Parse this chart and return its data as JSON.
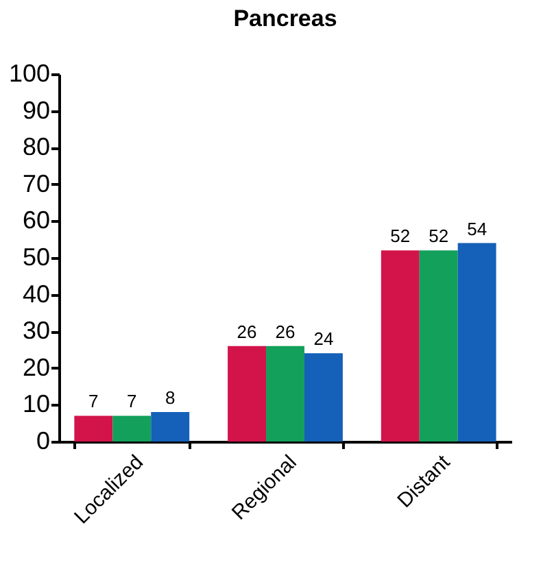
{
  "chart_data": {
    "type": "bar",
    "title": "Pancreas",
    "categories": [
      "Localized",
      "Regional",
      "Distant"
    ],
    "series": [
      {
        "color": "#d2144a",
        "values": [
          7,
          26,
          52
        ]
      },
      {
        "color": "#12a05a",
        "values": [
          7,
          26,
          52
        ]
      },
      {
        "color": "#1560b8",
        "values": [
          8,
          24,
          54
        ]
      }
    ],
    "ylim": [
      0,
      100
    ],
    "yticks": [
      0,
      10,
      20,
      30,
      40,
      50,
      60,
      70,
      80,
      90,
      100
    ],
    "grid": false,
    "legend": false,
    "data_labels": true
  }
}
